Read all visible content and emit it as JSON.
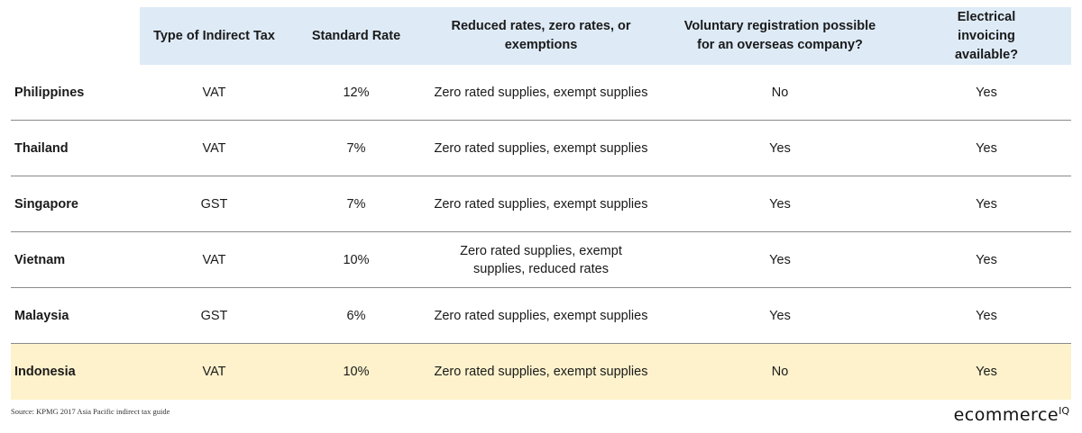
{
  "header": {
    "col0": "",
    "col1": "Type of Indirect Tax",
    "col2": "Standard Rate",
    "col3": "Reduced rates, zero rates, or exemptions",
    "col4": "Voluntary registration possible for an overseas company?",
    "col5": "Electrical invoicing available?"
  },
  "rows": [
    {
      "country": "Philippines",
      "tax": "VAT",
      "rate": "12%",
      "reduced": "Zero rated supplies, exempt supplies",
      "voluntary": "No",
      "invoicing": "Yes"
    },
    {
      "country": "Thailand",
      "tax": "VAT",
      "rate": "7%",
      "reduced": "Zero rated supplies, exempt supplies",
      "voluntary": "Yes",
      "invoicing": "Yes"
    },
    {
      "country": "Singapore",
      "tax": "GST",
      "rate": "7%",
      "reduced": "Zero rated supplies, exempt supplies",
      "voluntary": "Yes",
      "invoicing": "Yes"
    },
    {
      "country": "Vietnam",
      "tax": "VAT",
      "rate": "10%",
      "reduced": "Zero rated supplies, exempt supplies, reduced rates",
      "voluntary": "Yes",
      "invoicing": "Yes"
    },
    {
      "country": "Malaysia",
      "tax": "GST",
      "rate": "6%",
      "reduced": "Zero rated supplies, exempt supplies",
      "voluntary": "Yes",
      "invoicing": "Yes"
    },
    {
      "country": "Indonesia",
      "tax": "VAT",
      "rate": "10%",
      "reduced": "Zero rated supplies, exempt supplies",
      "voluntary": "No",
      "invoicing": "Yes"
    }
  ],
  "source": "Source: KPMG 2017 Asia Pacific indirect tax guide",
  "logo": {
    "text": "ecommerce",
    "suffix": "IQ"
  },
  "colors": {
    "header_bg": "#deebf7",
    "highlight_bg": "#fdf2cc",
    "divider": "#8a8a8a"
  }
}
